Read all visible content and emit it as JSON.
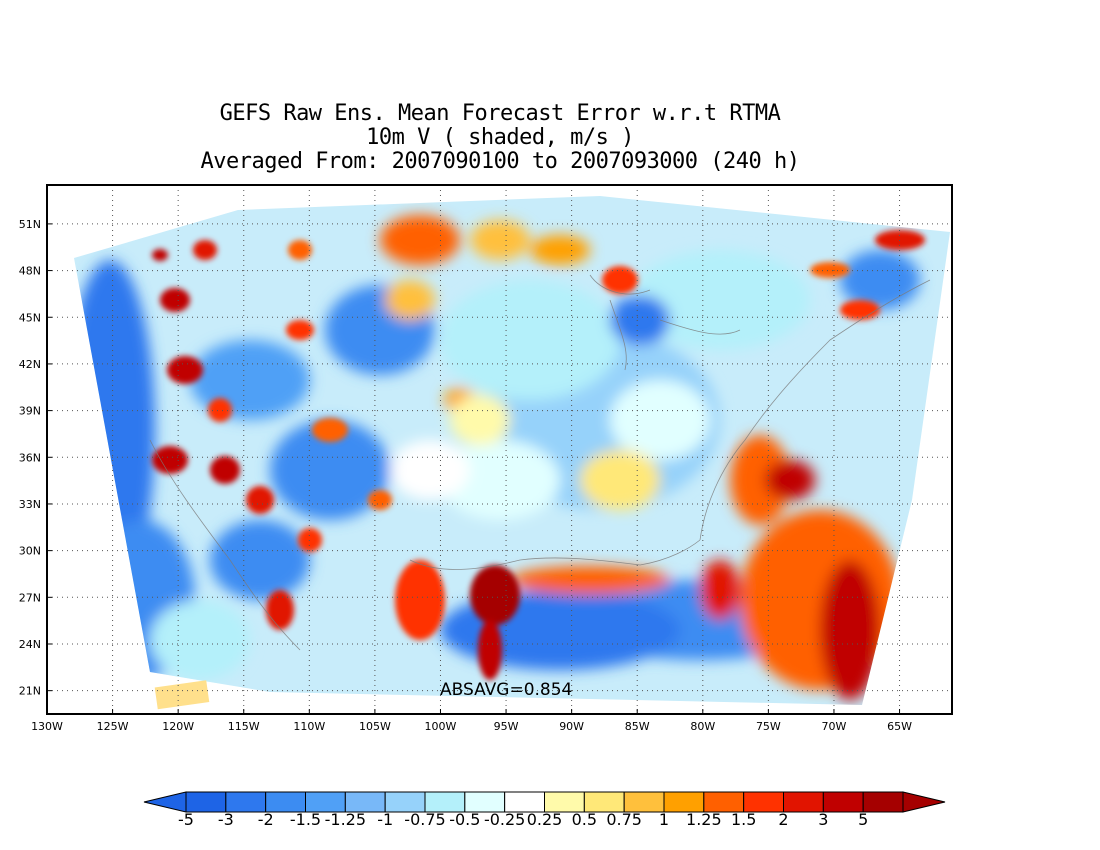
{
  "title": {
    "line1": "GEFS Raw Ens. Mean Forecast Error w.r.t RTMA",
    "line2": "10m V ( shaded, m/s )",
    "line3": "Averaged From: 2007090100 to 2007093000 (240 h)"
  },
  "map": {
    "projection": "lat-lon, continental United States",
    "lon_range": [
      -130,
      -61
    ],
    "lat_range": [
      19.5,
      53.5
    ],
    "lat_ticks": [
      "51N",
      "48N",
      "45N",
      "42N",
      "39N",
      "36N",
      "33N",
      "30N",
      "27N",
      "24N",
      "21N"
    ],
    "lat_tick_values": [
      51,
      48,
      45,
      42,
      39,
      36,
      33,
      30,
      27,
      24,
      21
    ],
    "lon_ticks": [
      "130W",
      "125W",
      "120W",
      "115W",
      "110W",
      "105W",
      "100W",
      "95W",
      "90W",
      "85W",
      "80W",
      "75W",
      "70W",
      "65W"
    ],
    "lon_tick_values": [
      -130,
      -125,
      -120,
      -115,
      -110,
      -105,
      -100,
      -95,
      -90,
      -85,
      -80,
      -75,
      -70,
      -65
    ],
    "grid": true,
    "field": "10m V forecast error (m/s)",
    "absavg_label": "ABSAVG=0.854"
  },
  "colorbar": {
    "labels": [
      "-5",
      "-3",
      "-2",
      "-1.5",
      "-1.25",
      "-1",
      "-0.75",
      "-0.5",
      "-0.25",
      "0.25",
      "0.5",
      "0.75",
      "1",
      "1.25",
      "1.5",
      "2",
      "3",
      "5"
    ],
    "colors": [
      "#1e64e6",
      "#2e78ee",
      "#3c8cf2",
      "#50a0f6",
      "#78b8f8",
      "#96d2fa",
      "#b4f0fa",
      "#e1ffff",
      "#ffffff",
      "#fffaaa",
      "#ffe878",
      "#ffc03c",
      "#ffa000",
      "#ff6000",
      "#ff3200",
      "#e11400",
      "#c00000",
      "#a50000"
    ]
  }
}
